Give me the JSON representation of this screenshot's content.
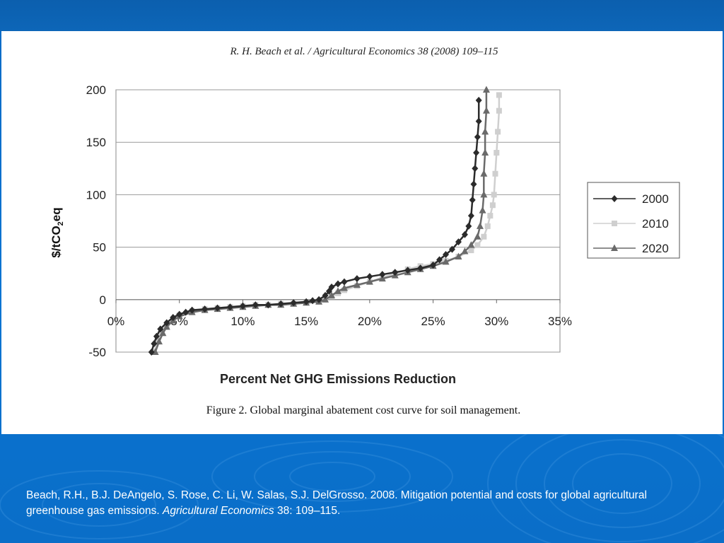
{
  "header": {
    "journal_line": "R. H. Beach et al. / Agricultural Economics 38 (2008) 109–115"
  },
  "caption": "Figure 2.  Global marginal abatement cost curve for soil management.",
  "citation": {
    "text_before": "Beach, R.H., B.J. DeAngelo, S. Rose, C. Li, W. Salas, S.J. DelGrosso. 2008. Mitigation potential and costs for global agricultural greenhouse gas emissions. ",
    "journal": "Agricultural Economics",
    "text_after": " 38: 109–115."
  },
  "chart_data": {
    "type": "scatter",
    "xlabel": "Percent Net GHG Emissions Reduction",
    "ylabel_main": "$/tCO",
    "ylabel_sub": "2",
    "ylabel_end": "eq",
    "xlim": [
      0,
      0.35
    ],
    "ylim": [
      -50,
      200
    ],
    "x_ticks": [
      "0%",
      "5%",
      "10%",
      "15%",
      "20%",
      "25%",
      "30%",
      "35%"
    ],
    "y_ticks": [
      "200",
      "150",
      "100",
      "50",
      "0",
      "-50"
    ],
    "grid": "horizontal",
    "legend_position": "right",
    "colors": {
      "2000": "#2b2b2b",
      "2010": "#cfcfcf",
      "2020": "#6a6a6a"
    },
    "series": [
      {
        "name": "2000",
        "marker": "diamond",
        "points": [
          [
            0.028,
            -50
          ],
          [
            0.03,
            -42
          ],
          [
            0.032,
            -35
          ],
          [
            0.035,
            -28
          ],
          [
            0.04,
            -22
          ],
          [
            0.045,
            -17
          ],
          [
            0.05,
            -14
          ],
          [
            0.055,
            -12
          ],
          [
            0.06,
            -10
          ],
          [
            0.07,
            -9
          ],
          [
            0.08,
            -8
          ],
          [
            0.09,
            -7
          ],
          [
            0.1,
            -6
          ],
          [
            0.11,
            -5
          ],
          [
            0.12,
            -5
          ],
          [
            0.13,
            -4
          ],
          [
            0.14,
            -3
          ],
          [
            0.15,
            -2
          ],
          [
            0.155,
            -1
          ],
          [
            0.16,
            0
          ],
          [
            0.165,
            4
          ],
          [
            0.168,
            8
          ],
          [
            0.17,
            12
          ],
          [
            0.175,
            15
          ],
          [
            0.18,
            17
          ],
          [
            0.19,
            20
          ],
          [
            0.2,
            22
          ],
          [
            0.21,
            24
          ],
          [
            0.22,
            26
          ],
          [
            0.23,
            28
          ],
          [
            0.24,
            30
          ],
          [
            0.25,
            33
          ],
          [
            0.255,
            38
          ],
          [
            0.26,
            43
          ],
          [
            0.265,
            48
          ],
          [
            0.27,
            55
          ],
          [
            0.275,
            62
          ],
          [
            0.278,
            70
          ],
          [
            0.28,
            80
          ],
          [
            0.281,
            95
          ],
          [
            0.282,
            110
          ],
          [
            0.283,
            125
          ],
          [
            0.284,
            140
          ],
          [
            0.285,
            155
          ],
          [
            0.286,
            170
          ],
          [
            0.286,
            190
          ]
        ]
      },
      {
        "name": "2010",
        "marker": "square",
        "points": [
          [
            0.03,
            -50
          ],
          [
            0.033,
            -40
          ],
          [
            0.036,
            -32
          ],
          [
            0.04,
            -25
          ],
          [
            0.045,
            -19
          ],
          [
            0.05,
            -15
          ],
          [
            0.06,
            -11
          ],
          [
            0.07,
            -9
          ],
          [
            0.08,
            -8
          ],
          [
            0.09,
            -7
          ],
          [
            0.1,
            -6
          ],
          [
            0.11,
            -5
          ],
          [
            0.12,
            -5
          ],
          [
            0.13,
            -4
          ],
          [
            0.14,
            -4
          ],
          [
            0.15,
            -3
          ],
          [
            0.16,
            -2
          ],
          [
            0.165,
            0
          ],
          [
            0.17,
            3
          ],
          [
            0.175,
            6
          ],
          [
            0.18,
            9
          ],
          [
            0.19,
            13
          ],
          [
            0.2,
            17
          ],
          [
            0.21,
            21
          ],
          [
            0.22,
            25
          ],
          [
            0.23,
            29
          ],
          [
            0.24,
            32
          ],
          [
            0.25,
            34
          ],
          [
            0.26,
            37
          ],
          [
            0.27,
            41
          ],
          [
            0.28,
            47
          ],
          [
            0.285,
            52
          ],
          [
            0.29,
            60
          ],
          [
            0.293,
            70
          ],
          [
            0.295,
            80
          ],
          [
            0.297,
            90
          ],
          [
            0.298,
            100
          ],
          [
            0.299,
            120
          ],
          [
            0.3,
            140
          ],
          [
            0.301,
            160
          ],
          [
            0.302,
            180
          ],
          [
            0.302,
            195
          ]
        ]
      },
      {
        "name": "2020",
        "marker": "triangle",
        "points": [
          [
            0.031,
            -50
          ],
          [
            0.034,
            -40
          ],
          [
            0.037,
            -32
          ],
          [
            0.04,
            -26
          ],
          [
            0.045,
            -20
          ],
          [
            0.05,
            -16
          ],
          [
            0.06,
            -12
          ],
          [
            0.07,
            -10
          ],
          [
            0.08,
            -9
          ],
          [
            0.09,
            -8
          ],
          [
            0.1,
            -7
          ],
          [
            0.11,
            -6
          ],
          [
            0.12,
            -5
          ],
          [
            0.13,
            -5
          ],
          [
            0.14,
            -4
          ],
          [
            0.15,
            -3
          ],
          [
            0.16,
            -2
          ],
          [
            0.165,
            0
          ],
          [
            0.17,
            4
          ],
          [
            0.175,
            8
          ],
          [
            0.18,
            11
          ],
          [
            0.19,
            14
          ],
          [
            0.2,
            17
          ],
          [
            0.21,
            20
          ],
          [
            0.22,
            23
          ],
          [
            0.23,
            26
          ],
          [
            0.24,
            29
          ],
          [
            0.25,
            32
          ],
          [
            0.26,
            36
          ],
          [
            0.27,
            41
          ],
          [
            0.275,
            46
          ],
          [
            0.28,
            52
          ],
          [
            0.285,
            60
          ],
          [
            0.287,
            70
          ],
          [
            0.289,
            85
          ],
          [
            0.29,
            100
          ],
          [
            0.29,
            120
          ],
          [
            0.291,
            140
          ],
          [
            0.291,
            160
          ],
          [
            0.292,
            180
          ],
          [
            0.292,
            200
          ]
        ]
      }
    ]
  }
}
